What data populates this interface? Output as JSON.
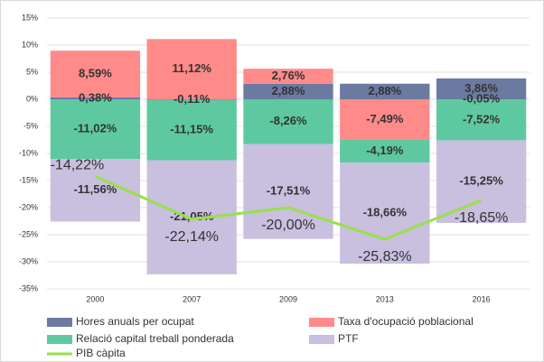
{
  "chart_data": {
    "type": "bar",
    "stacked": true,
    "categories": [
      "2000",
      "2007",
      "2009",
      "2013",
      "2016"
    ],
    "series": [
      {
        "name": "Hores anuals per ocupat",
        "color": "#6b7aa1",
        "values": [
          0.38,
          -0.11,
          2.88,
          2.88,
          3.86
        ],
        "value_labels": [
          "0,38%",
          "-0,11%",
          "2,88%",
          "2,88%",
          "3,86%"
        ]
      },
      {
        "name": "Taxa d'ocupació poblacional",
        "color": "#ff8a8a",
        "values": [
          8.59,
          11.12,
          2.76,
          -7.49,
          -0.05
        ],
        "value_labels": [
          "8,59%",
          "11,12%",
          "2,76%",
          "-7,49%",
          "-0,05%"
        ]
      },
      {
        "name": "Relació capital treball ponderada",
        "color": "#5ec9a0",
        "values": [
          -11.02,
          -11.15,
          -8.26,
          -4.19,
          -7.52
        ],
        "value_labels": [
          "-11,02%",
          "-11,15%",
          "-8,26%",
          "-4,19%",
          "-7,52%"
        ]
      },
      {
        "name": "PTF",
        "color": "#c9bfdf",
        "values": [
          -11.56,
          -21.05,
          -17.51,
          -18.66,
          -15.25
        ],
        "value_labels": [
          "-11,56%",
          "-21,05%",
          "-17,51%",
          "-18,66%",
          "-15,25%"
        ]
      },
      {
        "name": "PIB càpita",
        "type": "line",
        "color": "#99e04a",
        "values": [
          -14.22,
          -22.14,
          -20.0,
          -25.83,
          -18.65
        ],
        "value_labels": [
          "-14,22%",
          "-22,14%",
          "-20,00%",
          "-25,83%",
          "-18,65%"
        ]
      }
    ],
    "ylim": [
      -35,
      15
    ],
    "yticks": [
      {
        "value": -35,
        "label": "-35%"
      },
      {
        "value": -30,
        "label": "-30%"
      },
      {
        "value": -25,
        "label": "-25%"
      },
      {
        "value": -20,
        "label": "-20%"
      },
      {
        "value": -15,
        "label": "-15%"
      },
      {
        "value": -10,
        "label": "-10%"
      },
      {
        "value": -5,
        "label": "-5%"
      },
      {
        "value": 0,
        "label": "0%"
      },
      {
        "value": 5,
        "label": "5%"
      },
      {
        "value": 10,
        "label": "10%"
      },
      {
        "value": 15,
        "label": "15%"
      }
    ],
    "grid": true
  }
}
